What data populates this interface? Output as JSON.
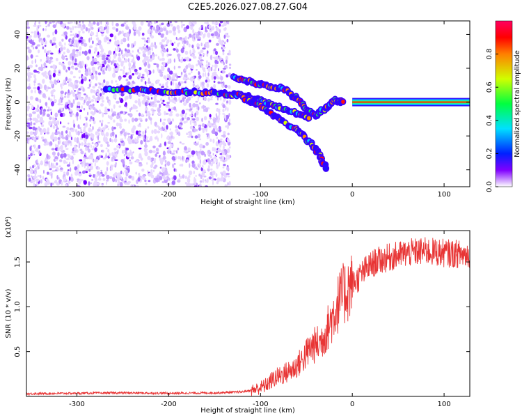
{
  "title": "C2E5.2026.027.08.27.G04",
  "chart_data": [
    {
      "type": "heatmap",
      "xlabel": "Height of straight line (km)",
      "ylabel": "Frequency (Hz)",
      "xlim": [
        -355,
        128
      ],
      "ylim": [
        -50,
        48
      ],
      "xticks": [
        "-300",
        "-200",
        "-100",
        "0",
        "100"
      ],
      "xtick_values": [
        -300,
        -200,
        -100,
        0,
        100
      ],
      "yticks": [
        "-40",
        "-20",
        "0",
        "20",
        "40"
      ],
      "ytick_values": [
        -40,
        -20,
        0,
        20,
        40
      ],
      "noise_region_x": [
        -355,
        -133
      ],
      "ridges": [
        {
          "name": "main-trace",
          "x": [
            -268,
            -230,
            -200,
            -170,
            -140,
            -120,
            -100,
            -80,
            -60,
            -45
          ],
          "y": [
            8,
            7,
            6,
            6,
            5,
            4,
            1,
            -3,
            -7,
            -10
          ]
        },
        {
          "name": "upper-branch",
          "x": [
            -130,
            -110,
            -90,
            -75,
            -60,
            -50,
            -40,
            -30,
            -20,
            -10
          ],
          "y": [
            15,
            12,
            9,
            8,
            2,
            -4,
            -8,
            -4,
            1,
            0
          ]
        },
        {
          "name": "lower-branch",
          "x": [
            -120,
            -100,
            -80,
            -60,
            -45,
            -35,
            -28
          ],
          "y": [
            3,
            -2,
            -10,
            -17,
            -24,
            -32,
            -40
          ]
        },
        {
          "name": "direct-signal",
          "x": [
            0,
            128
          ],
          "y": [
            0,
            0
          ]
        }
      ],
      "colorbar": {
        "label": "Normalized spectral amplitude",
        "range": [
          0,
          1
        ],
        "ticks": [
          "0.0",
          "0.2",
          "0.4",
          "0.6",
          "0.8"
        ],
        "tick_values": [
          0,
          0.2,
          0.4,
          0.6,
          0.8
        ]
      }
    },
    {
      "type": "line",
      "xlabel": "Height of straight line (km)",
      "ylabel": "SNR (10 * v/v)",
      "scale_label": "(x10⁴)",
      "xlim": [
        -355,
        128
      ],
      "ylim": [
        0,
        1.85
      ],
      "xticks": [
        "-300",
        "-200",
        "-100",
        "0",
        "100"
      ],
      "xtick_values": [
        -300,
        -200,
        -100,
        0,
        100
      ],
      "yticks": [
        "0.5",
        "1.0",
        "1.5"
      ],
      "ytick_values": [
        0.5,
        1.0,
        1.5
      ],
      "series": [
        {
          "name": "SNR",
          "color": "#e83434",
          "x": [
            -355,
            -300,
            -250,
            -200,
            -150,
            -120,
            -105,
            -95,
            -85,
            -75,
            -65,
            -55,
            -45,
            -35,
            -25,
            -15,
            -5,
            5,
            15,
            25,
            40,
            60,
            80,
            100,
            128
          ],
          "y": [
            0.03,
            0.035,
            0.04,
            0.035,
            0.04,
            0.05,
            0.08,
            0.12,
            0.2,
            0.25,
            0.3,
            0.4,
            0.55,
            0.6,
            0.8,
            1.05,
            1.2,
            1.3,
            1.42,
            1.5,
            1.55,
            1.6,
            1.62,
            1.6,
            1.58
          ]
        }
      ]
    }
  ]
}
